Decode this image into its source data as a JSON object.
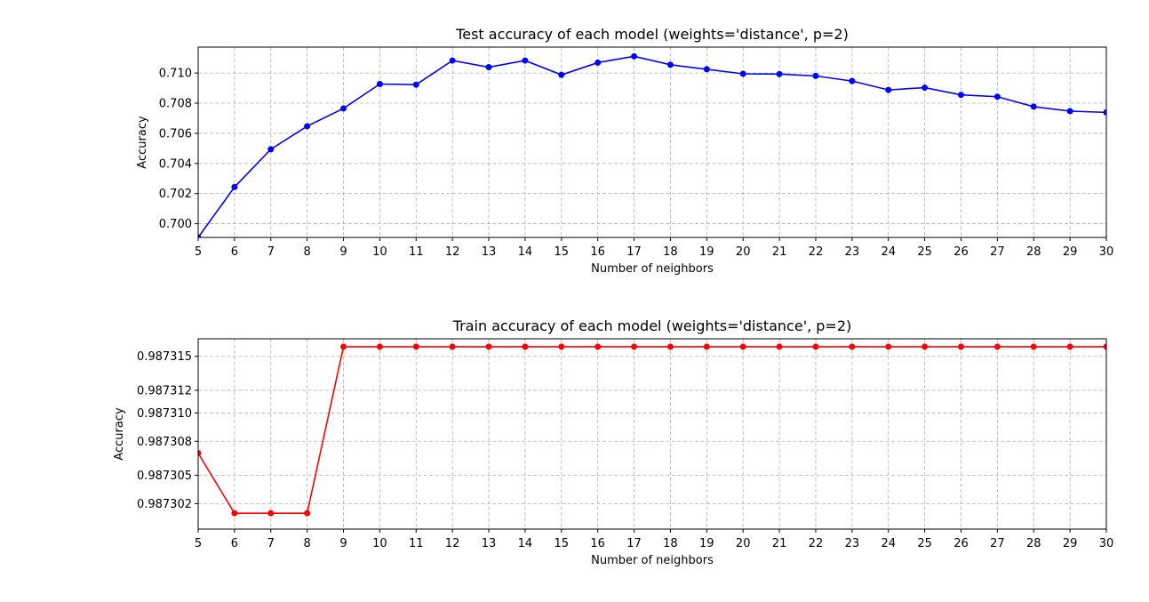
{
  "chart_data": [
    {
      "type": "line",
      "title": "Test accuracy of each model (weights='distance', p=2)",
      "xlabel": "Number of neighbors",
      "ylabel": "Accuracy",
      "xlim": [
        5,
        30
      ],
      "ylim": [
        0.69909,
        0.71172
      ],
      "grid": true,
      "color": "#0000ff",
      "x": [
        5,
        6,
        7,
        8,
        9,
        10,
        11,
        12,
        13,
        14,
        15,
        16,
        17,
        18,
        19,
        20,
        21,
        22,
        23,
        24,
        25,
        26,
        27,
        28,
        29,
        30
      ],
      "xticks": [
        "5",
        "6",
        "7",
        "8",
        "9",
        "10",
        "11",
        "12",
        "13",
        "14",
        "15",
        "16",
        "17",
        "18",
        "19",
        "20",
        "21",
        "22",
        "23",
        "24",
        "25",
        "26",
        "27",
        "28",
        "29",
        "30"
      ],
      "yticks": [
        0.7,
        0.702,
        0.704,
        0.706,
        0.708,
        0.71
      ],
      "ytick_labels": [
        "0.700",
        "0.702",
        "0.704",
        "0.706",
        "0.708",
        "0.710"
      ],
      "series": [
        {
          "values": [
            0.69909,
            0.70243,
            0.70494,
            0.70647,
            0.70765,
            0.70927,
            0.70923,
            0.71083,
            0.71039,
            0.71083,
            0.70988,
            0.71069,
            0.71111,
            0.71055,
            0.71025,
            0.70995,
            0.70993,
            0.70981,
            0.70947,
            0.70888,
            0.70903,
            0.70855,
            0.70843,
            0.70777,
            0.70747,
            0.70739
          ]
        }
      ]
    },
    {
      "type": "line",
      "title": "Train accuracy of each model (weights='distance', p=2)",
      "xlabel": "Number of neighbors",
      "ylabel": "Accuracy",
      "xlim": [
        5,
        30
      ],
      "ylim": [
        0.9873,
        0.9873168
      ],
      "grid": true,
      "color": "#ff0000",
      "x": [
        5,
        6,
        7,
        8,
        9,
        10,
        11,
        12,
        13,
        14,
        15,
        16,
        17,
        18,
        19,
        20,
        21,
        22,
        23,
        24,
        25,
        26,
        27,
        28,
        29,
        30
      ],
      "xticks": [
        "5",
        "6",
        "7",
        "8",
        "9",
        "10",
        "11",
        "12",
        "13",
        "14",
        "15",
        "16",
        "17",
        "18",
        "19",
        "20",
        "21",
        "22",
        "23",
        "24",
        "25",
        "26",
        "27",
        "28",
        "29",
        "30"
      ],
      "yticks": [
        0.98730225,
        0.98730475,
        0.98730775,
        0.98731025,
        0.98731225,
        0.98731525
      ],
      "ytick_labels": [
        "0.987302",
        "0.987305",
        "0.987308",
        "0.987310",
        "0.987312",
        "0.987315"
      ],
      "series": [
        {
          "values": [
            0.9873067,
            0.9873014,
            0.9873014,
            0.9873014,
            0.9873161,
            0.9873161,
            0.9873161,
            0.9873161,
            0.9873161,
            0.9873161,
            0.9873161,
            0.9873161,
            0.9873161,
            0.9873161,
            0.9873161,
            0.9873161,
            0.9873161,
            0.9873161,
            0.9873161,
            0.9873161,
            0.9873161,
            0.9873161,
            0.9873161,
            0.9873161,
            0.9873161,
            0.9873161
          ]
        }
      ]
    }
  ]
}
